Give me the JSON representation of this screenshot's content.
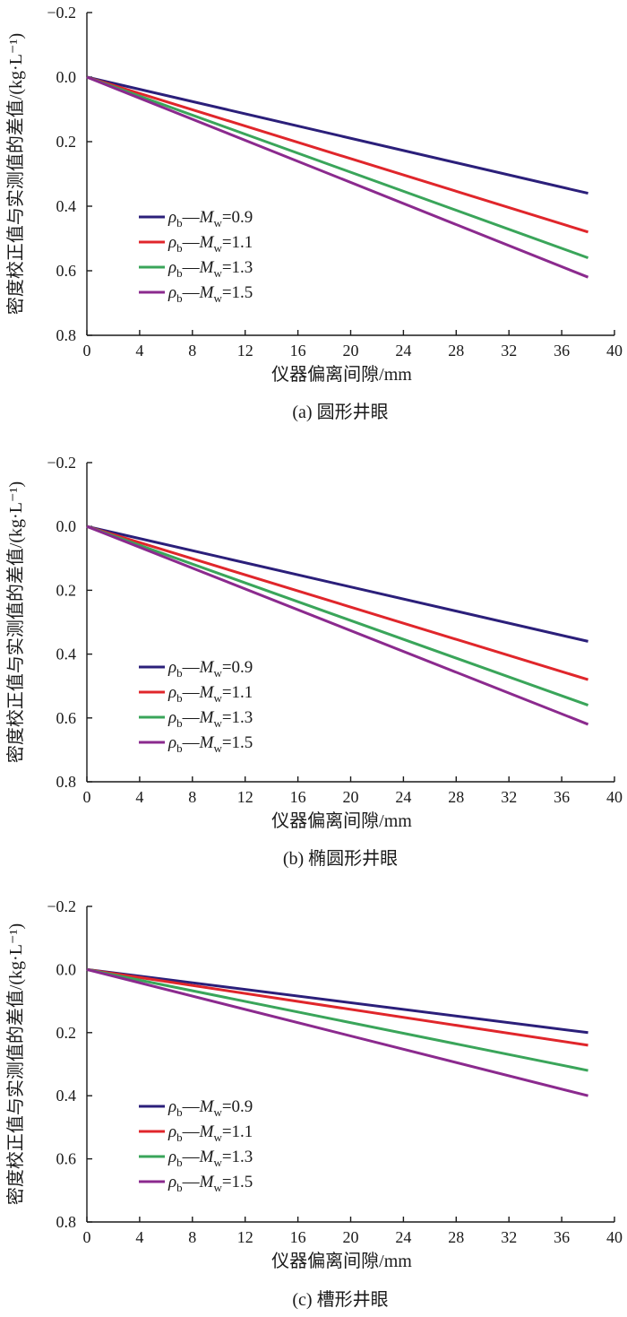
{
  "colors": {
    "s09": "#2b1f7a",
    "s11": "#e0262b",
    "s13": "#3aa55a",
    "s15": "#8b2a8e"
  },
  "chart_data": [
    {
      "type": "line",
      "caption": "(a) 圆形井眼",
      "xlabel": "仪器偏离间隙/mm",
      "ylabel": "密度校正值与实测值的差值/(kg·L⁻¹)",
      "xlim": [
        0,
        40
      ],
      "ylim": [
        -0.2,
        0.8
      ],
      "y_inverted": true,
      "xticks": [
        "0",
        "4",
        "8",
        "12",
        "16",
        "20",
        "24",
        "28",
        "32",
        "36",
        "40"
      ],
      "yticks": [
        "-0.2",
        "0.0",
        "0.2",
        "0.4",
        "0.6",
        "0.8"
      ],
      "legend_position": "lower-left",
      "series": [
        {
          "name": "ρb—Mw=0.9",
          "x": [
            0,
            38
          ],
          "y": [
            0.0,
            0.36
          ]
        },
        {
          "name": "ρb—Mw=1.1",
          "x": [
            0,
            38
          ],
          "y": [
            0.0,
            0.48
          ]
        },
        {
          "name": "ρb—Mw=1.3",
          "x": [
            0,
            38
          ],
          "y": [
            0.0,
            0.56
          ]
        },
        {
          "name": "ρb—Mw=1.5",
          "x": [
            0,
            38
          ],
          "y": [
            0.0,
            0.62
          ]
        }
      ]
    },
    {
      "type": "line",
      "caption": "(b) 椭圆形井眼",
      "xlabel": "仪器偏离间隙/mm",
      "ylabel": "密度校正值与实测值的差值/(kg·L⁻¹)",
      "xlim": [
        0,
        40
      ],
      "ylim": [
        -0.2,
        0.8
      ],
      "y_inverted": true,
      "xticks": [
        "0",
        "4",
        "8",
        "12",
        "16",
        "20",
        "24",
        "28",
        "32",
        "36",
        "40"
      ],
      "yticks": [
        "-0.2",
        "0.0",
        "0.2",
        "0.4",
        "0.6",
        "0.8"
      ],
      "legend_position": "lower-left",
      "series": [
        {
          "name": "ρb—Mw=0.9",
          "x": [
            0,
            38
          ],
          "y": [
            0.0,
            0.36
          ]
        },
        {
          "name": "ρb—Mw=1.1",
          "x": [
            0,
            38
          ],
          "y": [
            0.0,
            0.48
          ]
        },
        {
          "name": "ρb—Mw=1.3",
          "x": [
            0,
            38
          ],
          "y": [
            0.0,
            0.56
          ]
        },
        {
          "name": "ρb—Mw=1.5",
          "x": [
            0,
            38
          ],
          "y": [
            0.0,
            0.62
          ]
        }
      ]
    },
    {
      "type": "line",
      "caption": "(c) 槽形井眼",
      "xlabel": "仪器偏离间隙/mm",
      "ylabel": "密度校正值与实测值的差值/(kg·L⁻¹)",
      "xlim": [
        0,
        40
      ],
      "ylim": [
        -0.2,
        0.8
      ],
      "y_inverted": true,
      "xticks": [
        "0",
        "4",
        "8",
        "12",
        "16",
        "20",
        "24",
        "28",
        "32",
        "36",
        "40"
      ],
      "yticks": [
        "-0.2",
        "0.0",
        "0.2",
        "0.4",
        "0.6",
        "0.8"
      ],
      "legend_position": "lower-left",
      "series": [
        {
          "name": "ρb—Mw=0.9",
          "x": [
            0,
            38
          ],
          "y": [
            0.0,
            0.2
          ]
        },
        {
          "name": "ρb—Mw=1.1",
          "x": [
            0,
            38
          ],
          "y": [
            0.0,
            0.24
          ]
        },
        {
          "name": "ρb—Mw=1.3",
          "x": [
            0,
            38
          ],
          "y": [
            0.0,
            0.32
          ]
        },
        {
          "name": "ρb—Mw=1.5",
          "x": [
            0,
            38
          ],
          "y": [
            0.0,
            0.4
          ]
        }
      ]
    }
  ]
}
